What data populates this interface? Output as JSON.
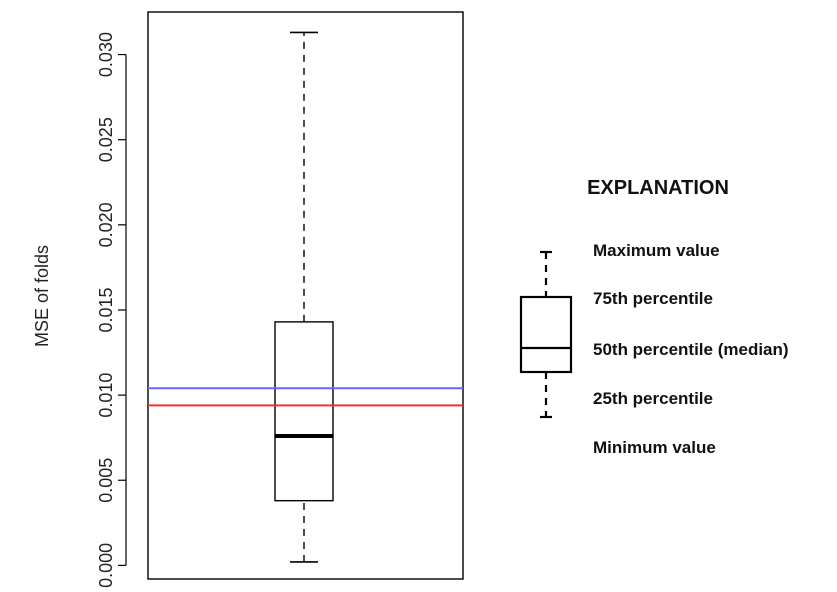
{
  "chart_data": {
    "type": "box",
    "ylabel": "MSE of folds",
    "ylim": [
      -0.0008,
      0.0325
    ],
    "yticks": [
      "0.000",
      "0.005",
      "0.010",
      "0.015",
      "0.020",
      "0.025",
      "0.030"
    ],
    "ytick_values": [
      0.0,
      0.005,
      0.01,
      0.015,
      0.02,
      0.025,
      0.03
    ],
    "box": {
      "min": 0.0002,
      "q1": 0.0038,
      "median": 0.0076,
      "q3": 0.0143,
      "max": 0.0313
    },
    "reference_lines": [
      {
        "value": 0.0104,
        "color": "#6666ff"
      },
      {
        "value": 0.0094,
        "color": "#ee3333"
      }
    ],
    "grid": false
  },
  "legend": {
    "title": "EXPLANATION",
    "items": [
      "Maximum value",
      "75th percentile",
      "50th percentile (median)",
      "25th percentile",
      "Minimum value"
    ]
  }
}
